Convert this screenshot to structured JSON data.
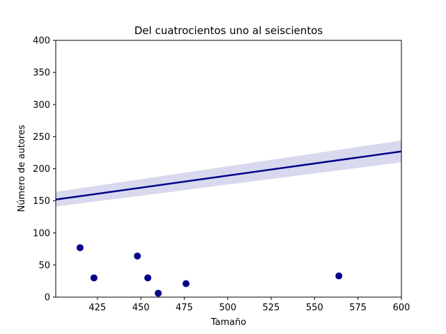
{
  "chart_data": {
    "type": "scatter",
    "title": "Del cuatrocientos uno al seiscientos",
    "xlabel": "Tamaño",
    "ylabel": "Número de autores",
    "xlim": [
      401,
      600
    ],
    "ylim": [
      0,
      400
    ],
    "x_ticks": [
      425,
      450,
      475,
      500,
      525,
      550,
      575,
      600
    ],
    "y_ticks": [
      0,
      50,
      100,
      150,
      200,
      250,
      300,
      350,
      400
    ],
    "grid": false,
    "points": [
      {
        "x": 415,
        "y": 77
      },
      {
        "x": 423,
        "y": 30
      },
      {
        "x": 448,
        "y": 64
      },
      {
        "x": 454,
        "y": 30
      },
      {
        "x": 460,
        "y": 6
      },
      {
        "x": 476,
        "y": 21
      },
      {
        "x": 564,
        "y": 33
      }
    ],
    "regression": {
      "x": [
        401,
        600
      ],
      "y": [
        152,
        227
      ],
      "lower": [
        141,
        210
      ],
      "upper": [
        164,
        244
      ]
    },
    "colors": {
      "points": "#00008b",
      "line": "#00008b",
      "band": "#d8d8ee"
    }
  }
}
